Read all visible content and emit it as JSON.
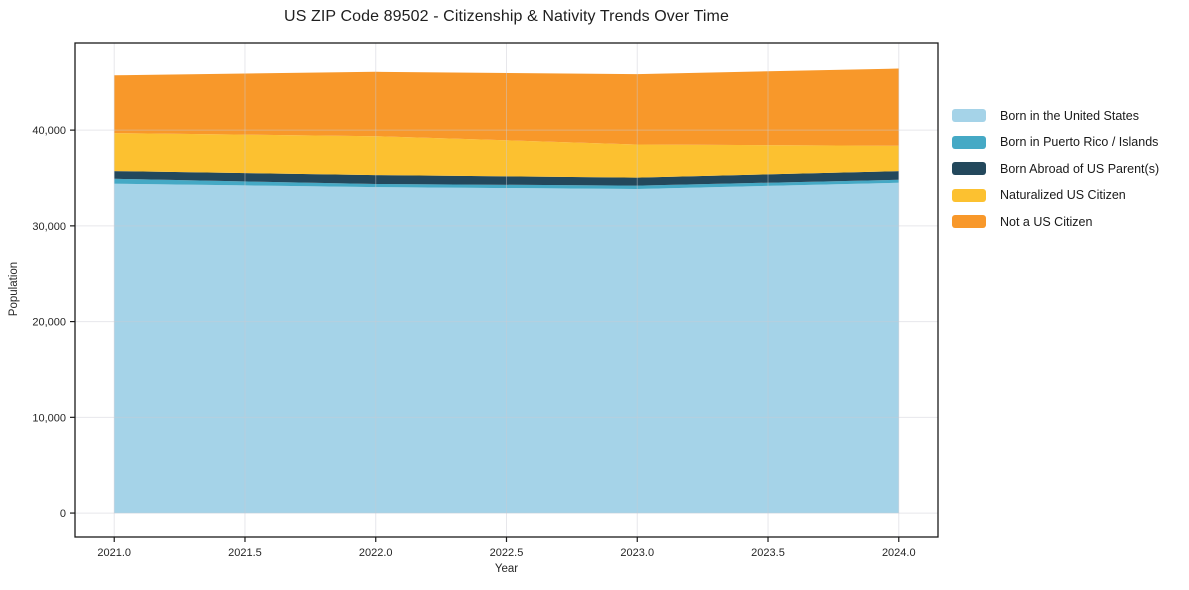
{
  "chart_data": {
    "type": "area",
    "stacked": true,
    "title": "US ZIP Code 89502 - Citizenship & Nativity Trends Over Time",
    "xlabel": "Year",
    "ylabel": "Population",
    "x": [
      2021,
      2022,
      2023,
      2024
    ],
    "series": [
      {
        "name": "Born in the United States",
        "color": "#a5d3e8",
        "values": [
          34400,
          34050,
          33850,
          34500
        ]
      },
      {
        "name": "Born in Puerto Rico / Islands",
        "color": "#45a9c5",
        "values": [
          520,
          320,
          350,
          310
        ]
      },
      {
        "name": "Born Abroad of US Parent(s)",
        "color": "#23485c",
        "values": [
          800,
          930,
          840,
          910
        ]
      },
      {
        "name": "Naturalized US Citizen",
        "color": "#fcc130",
        "values": [
          3970,
          4070,
          3460,
          2640
        ]
      },
      {
        "name": "Not a US Citizen",
        "color": "#f8982a",
        "values": [
          6040,
          6720,
          7350,
          8080
        ]
      }
    ],
    "stack_totals": [
      45730,
      46090,
      45850,
      46440
    ],
    "xlim": [
      2020.85,
      2024.15
    ],
    "ylim": [
      -2500,
      49100
    ],
    "x_ticks": [
      2021.0,
      2021.5,
      2022.0,
      2022.5,
      2023.0,
      2023.5,
      2024.0
    ],
    "x_tick_labels": [
      "2021.0",
      "2021.5",
      "2022.0",
      "2022.5",
      "2023.0",
      "2023.5",
      "2024.0"
    ],
    "y_ticks": [
      0,
      10000,
      20000,
      30000,
      40000
    ],
    "y_tick_labels": [
      "0",
      "10,000",
      "20,000",
      "30,000",
      "40,000"
    ],
    "grid": true,
    "grid_color": "#c9c9d2",
    "axis_color": "#1a1a1a",
    "tick_label_color": "#262626",
    "legend_position": "right-outside"
  }
}
